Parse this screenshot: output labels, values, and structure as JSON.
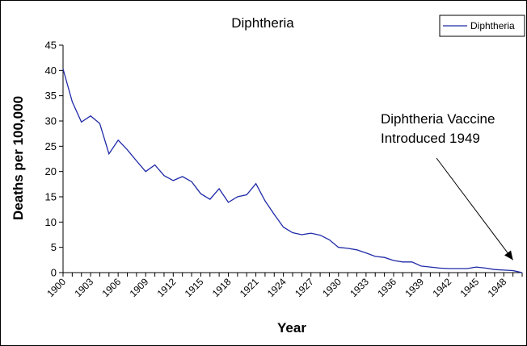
{
  "chart_data": {
    "type": "line",
    "title": "Diphtheria",
    "xlabel": "Year",
    "ylabel": "Deaths per 100,000",
    "ylim": [
      0,
      45
    ],
    "yticks": [
      0,
      5,
      10,
      15,
      20,
      25,
      30,
      35,
      40,
      45
    ],
    "xlim": [
      1900,
      1950
    ],
    "xtick_labels": [
      "1900",
      "1903",
      "1906",
      "1909",
      "1912",
      "1915",
      "1918",
      "1921",
      "1924",
      "1927",
      "1930",
      "1933",
      "1936",
      "1939",
      "1942",
      "1945",
      "1948"
    ],
    "grid": false,
    "legend": {
      "position": "top-right",
      "entries": [
        "Diphtheria"
      ]
    },
    "series": [
      {
        "name": "Diphtheria",
        "color": "#1f2aa8",
        "x": [
          1900,
          1901,
          1902,
          1903,
          1904,
          1905,
          1906,
          1907,
          1908,
          1909,
          1910,
          1911,
          1912,
          1913,
          1914,
          1915,
          1916,
          1917,
          1918,
          1919,
          1920,
          1921,
          1922,
          1923,
          1924,
          1925,
          1926,
          1927,
          1928,
          1929,
          1930,
          1931,
          1932,
          1933,
          1934,
          1935,
          1936,
          1937,
          1938,
          1939,
          1940,
          1941,
          1942,
          1943,
          1944,
          1945,
          1946,
          1947,
          1948,
          1949,
          1950
        ],
        "y": [
          40.3,
          33.8,
          29.8,
          31.0,
          29.5,
          23.5,
          26.2,
          24.3,
          22.1,
          20.0,
          21.3,
          19.2,
          18.2,
          19.0,
          18.0,
          15.6,
          14.5,
          16.6,
          13.9,
          15.0,
          15.4,
          17.6,
          14.2,
          11.5,
          9.0,
          7.9,
          7.5,
          7.8,
          7.4,
          6.5,
          5.0,
          4.8,
          4.5,
          3.9,
          3.2,
          3.0,
          2.4,
          2.1,
          2.1,
          1.3,
          1.1,
          0.9,
          0.8,
          0.8,
          0.8,
          1.1,
          0.9,
          0.6,
          0.5,
          0.4,
          0.0
        ]
      }
    ],
    "annotations": [
      {
        "lines": [
          "Diphtheria Vaccine",
          "Introduced 1949"
        ],
        "arrow_to": {
          "x": 1949,
          "y": 2.5
        }
      }
    ]
  }
}
